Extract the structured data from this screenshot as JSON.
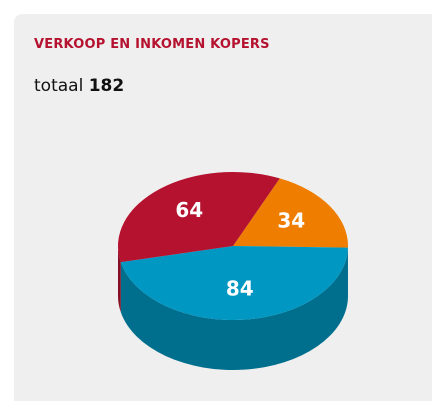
{
  "chart_data": {
    "type": "pie",
    "title": "VERKOOP EN INKOMEN KOPERS",
    "total_label": "totaal",
    "total": 182,
    "values": [
      34,
      84,
      64
    ],
    "colors": [
      "#ef7d00",
      "#0098c3",
      "#b5122f"
    ],
    "side_colors": [
      "#b35d00",
      "#006f8e",
      "#870d23"
    ]
  }
}
